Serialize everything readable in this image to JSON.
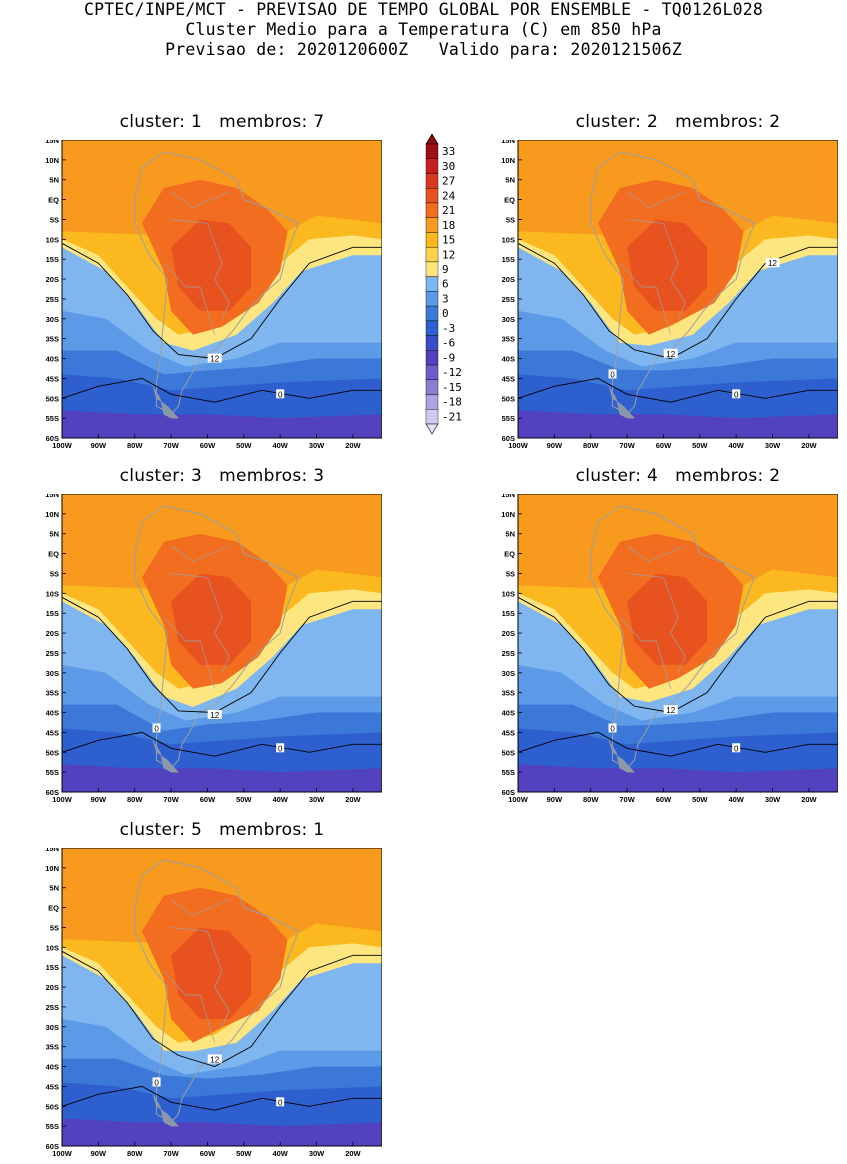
{
  "header": {
    "line1": "CPTEC/INPE/MCT - PREVISAO DE TEMPO GLOBAL POR ENSEMBLE - TQ0126L028",
    "line2": "Cluster Medio para a Temperatura (C) em 850 hPa",
    "line3": "Previsao de: 2020120600Z   Valido para: 2020121506Z"
  },
  "panels": [
    {
      "title": "cluster: 1   membros: 7",
      "labels_12": [
        "12"
      ],
      "labels_0": [
        "0"
      ]
    },
    {
      "title": "cluster: 2   membros: 2",
      "labels_12": [
        "12",
        "12"
      ],
      "labels_0": [
        "0",
        "0"
      ]
    },
    {
      "title": "cluster: 3   membros: 3",
      "labels_12": [
        "12"
      ],
      "labels_0": [
        "0",
        "0"
      ]
    },
    {
      "title": "cluster: 4   membros: 2",
      "labels_12": [
        "12"
      ],
      "labels_0": [
        "0",
        "0"
      ]
    },
    {
      "title": "cluster: 5   membros: 1",
      "labels_12": [
        "12"
      ],
      "labels_0": [
        "0",
        "0"
      ]
    }
  ],
  "lat_ticks": [
    "15N",
    "10N",
    "5N",
    "EQ",
    "5S",
    "10S",
    "15S",
    "20S",
    "25S",
    "30S",
    "35S",
    "40S",
    "45S",
    "50S",
    "55S",
    "60S"
  ],
  "lon_ticks": [
    "100W",
    "90W",
    "80W",
    "70W",
    "60W",
    "50W",
    "40W",
    "30W",
    "20W"
  ],
  "colorbar": {
    "labels": [
      "33",
      "30",
      "27",
      "24",
      "21",
      "18",
      "15",
      "12",
      "9",
      "6",
      "3",
      "0",
      "-3",
      "-6",
      "-9",
      "-12",
      "-15",
      "-18",
      "-21"
    ],
    "colors": [
      "#a00d14",
      "#c41e1e",
      "#d9391e",
      "#e8521e",
      "#f26d1f",
      "#f89a1e",
      "#fbb91f",
      "#fcd34a",
      "#fde680",
      "#7fb6f0",
      "#5c99e6",
      "#3b78d8",
      "#2e5fcf",
      "#3d4bc8",
      "#5342c0",
      "#6e5ac8",
      "#8e7bd4",
      "#b1a1e0",
      "#d2c8ee"
    ],
    "top_arrow_color": "#8b0a10",
    "bottom_arrow_color": "#e6e0f5"
  },
  "colors": {
    "warm": "#f89a1e",
    "pale": "#fde680",
    "orange_mid": "#f26d1f",
    "red": "#e8521e",
    "light_blue": "#7fb6f0",
    "blue": "#5c99e6",
    "deep_blue": "#3b78d8",
    "navy": "#2e5fcf",
    "purple": "#5342c0",
    "land_outline": "#9aa0a6"
  }
}
